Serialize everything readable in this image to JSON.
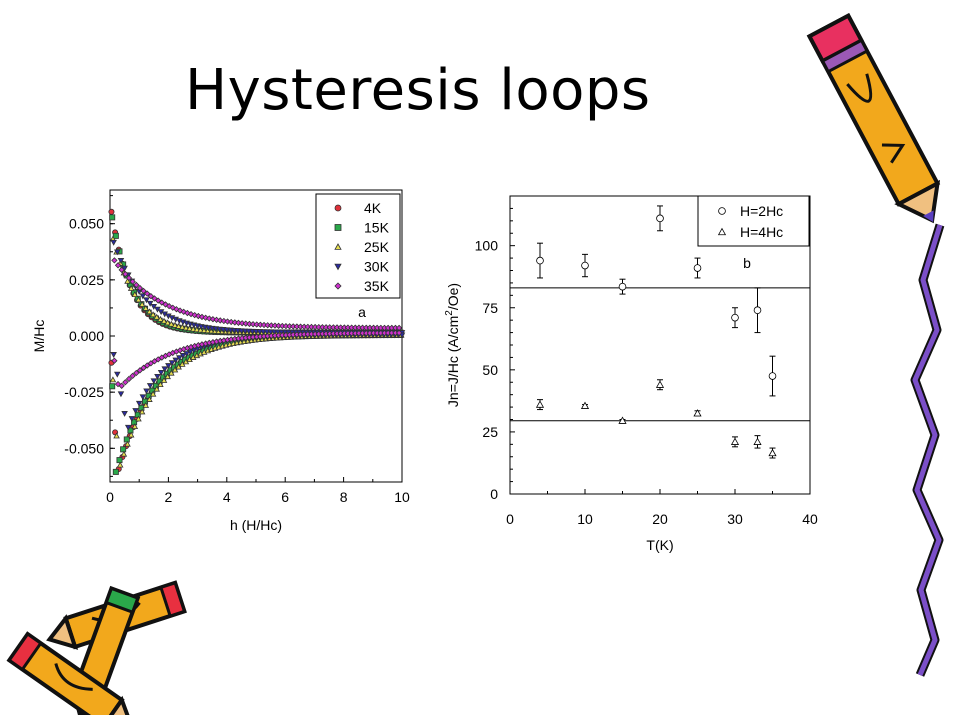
{
  "slide": {
    "title": "Hysteresis loops"
  },
  "chart_data": [
    {
      "type": "scatter",
      "panel_label": "a",
      "xlabel": "h (H/Hc)",
      "ylabel": "M/Hc",
      "xlim": [
        0,
        10
      ],
      "ylim": [
        -0.065,
        0.065
      ],
      "xticks": [
        "0",
        "2",
        "4",
        "6",
        "8",
        "10"
      ],
      "yticks": [
        "0.050",
        "0.025",
        "0.000",
        "-0.025",
        "-0.050"
      ],
      "ytick_values": [
        0.05,
        0.025,
        0,
        -0.025,
        -0.05
      ],
      "legend_position": "top-right",
      "series": [
        {
          "name": "4K",
          "color": "#e0303a",
          "marker": "circle",
          "A": 0.058,
          "k": 1.5,
          "Ad": 0.062,
          "kd": 0.75,
          "peak": 0.25,
          "offset": 0.0
        },
        {
          "name": "15K",
          "color": "#2aa84a",
          "marker": "square",
          "A": 0.057,
          "k": 1.4,
          "Ad": 0.061,
          "kd": 0.72,
          "peak": 0.2,
          "offset": 0.0
        },
        {
          "name": "25K",
          "color": "#e8e050",
          "marker": "triangle-up",
          "A": 0.047,
          "k": 1.2,
          "Ad": 0.06,
          "kd": 0.7,
          "peak": 0.3,
          "offset": 0.0
        },
        {
          "name": "30K",
          "color": "#2a2aa0",
          "marker": "triangle-down",
          "A": 0.045,
          "k": 0.9,
          "Ad": 0.042,
          "kd": 0.8,
          "peak": 0.6,
          "offset": 0.0
        },
        {
          "name": "35K",
          "color": "#d030d0",
          "marker": "diamond",
          "A": 0.033,
          "k": 0.6,
          "Ad": 0.025,
          "kd": 0.55,
          "peak": 0.3,
          "offset": 0.002
        }
      ]
    },
    {
      "type": "scatter",
      "panel_label": "b",
      "xlabel": "T(K)",
      "ylabel": "Jn=J/Hc (A/cm",
      "ylabel_sup": "2",
      "ylabel_tail": "/Oe)",
      "xlim": [
        0,
        40
      ],
      "ylim": [
        0,
        120
      ],
      "xticks": [
        0,
        10,
        20,
        30,
        40
      ],
      "yticks": [
        0,
        25,
        50,
        75,
        100
      ],
      "legend_position": "top-right",
      "hlines": [
        83,
        29.5
      ],
      "series": [
        {
          "name": "H=2Hc",
          "marker": "open-circle",
          "x": [
            4,
            10,
            15,
            20,
            25,
            30,
            33,
            35
          ],
          "y": [
            94,
            92,
            83.5,
            111,
            91,
            71,
            74,
            47.5
          ],
          "err": [
            7,
            4.5,
            3,
            5,
            4,
            4,
            9,
            8
          ]
        },
        {
          "name": "H=4Hc",
          "marker": "open-triangle",
          "x": [
            4,
            10,
            15,
            20,
            25,
            30,
            33,
            35
          ],
          "y": [
            36,
            35.5,
            29.5,
            44,
            32.5,
            21,
            21,
            16.5
          ],
          "err": [
            2,
            0.5,
            0.5,
            2,
            1,
            2,
            2.5,
            2
          ]
        }
      ]
    }
  ]
}
